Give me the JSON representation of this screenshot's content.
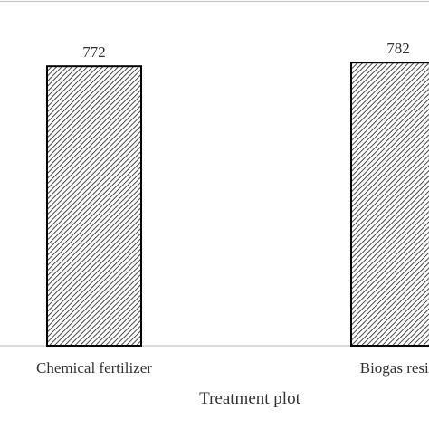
{
  "chart_data": {
    "type": "bar",
    "categories": [
      "Chemical fertilizer",
      "Biogas resid"
    ],
    "values": [
      772,
      782
    ],
    "data_labels": [
      "772",
      "782"
    ],
    "title": "",
    "xlabel": "Treatment plot",
    "ylabel": "",
    "ylim": [
      0,
      800
    ],
    "grid": false,
    "legend": "none",
    "bar_fill": "diagonal-hatch",
    "colors": {
      "bar_edge": "#000000",
      "hatch": "#333333",
      "axis": "#c8c8c8",
      "text": "#333333"
    }
  }
}
